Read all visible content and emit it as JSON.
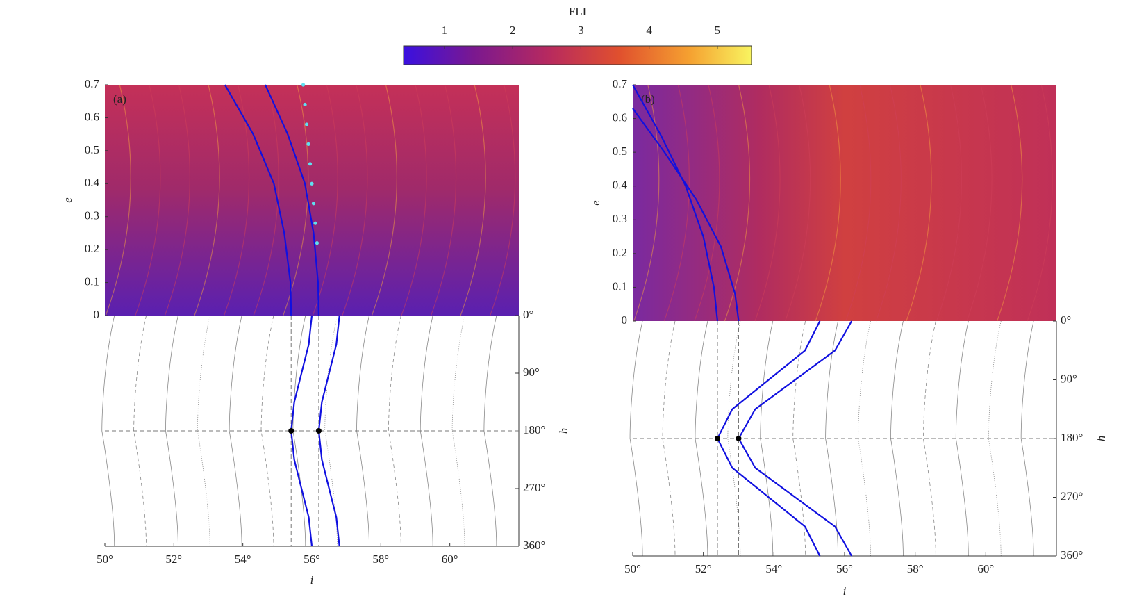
{
  "chart_data": [
    {
      "type": "colorbar",
      "title": "FLI",
      "xlim": [
        0.4,
        5.5
      ],
      "xticks": [
        1,
        2,
        3,
        4,
        5
      ]
    },
    {
      "type": "heatmap",
      "panel_label": "(a)",
      "ylabel": "e",
      "xlim": [
        50,
        62
      ],
      "ylim": [
        0,
        0.7
      ],
      "yticks": [
        0,
        0.1,
        0.2,
        0.3,
        0.4,
        0.5,
        0.6,
        0.7
      ],
      "series": [
        {
          "style": "line",
          "color": "#1010e0",
          "x": [
            53.48,
            54.3,
            54.9,
            55.2,
            55.38,
            55.4
          ],
          "values": [
            0.7,
            0.55,
            0.4,
            0.25,
            0.1,
            0
          ]
        },
        {
          "style": "line",
          "color": "#1010e0",
          "x": [
            54.65,
            55.3,
            55.8,
            56.05,
            56.18,
            56.2
          ],
          "values": [
            0.7,
            0.55,
            0.4,
            0.25,
            0.1,
            0
          ]
        },
        {
          "style": "points",
          "color": "#5fe0f0",
          "x": [
            55.75,
            55.8,
            55.85,
            55.9,
            55.95,
            56.0,
            56.05,
            56.1,
            56.15
          ],
          "values": [
            0.7,
            0.64,
            0.58,
            0.52,
            0.46,
            0.4,
            0.34,
            0.28,
            0.22
          ]
        }
      ]
    },
    {
      "type": "line",
      "xlabel": "i",
      "ylabel": "h",
      "xlim": [
        50,
        62
      ],
      "ylim": [
        0,
        360
      ],
      "y_inverted": true,
      "xticks": [
        {
          "value": 50,
          "label": "50°"
        },
        {
          "value": 52,
          "label": "52°"
        },
        {
          "value": 54,
          "label": "54°"
        },
        {
          "value": 56,
          "label": "56°"
        },
        {
          "value": 58,
          "label": "58°"
        },
        {
          "value": 60,
          "label": "60°"
        }
      ],
      "yticks": [
        {
          "value": 0,
          "label": "0°"
        },
        {
          "value": 90,
          "label": "90°"
        },
        {
          "value": 180,
          "label": "180°"
        },
        {
          "value": 270,
          "label": "270°"
        },
        {
          "value": 360,
          "label": "360°"
        }
      ],
      "series": [
        {
          "style": "line",
          "color": "#1010e0",
          "x": [
            56.0,
            55.91,
            55.7,
            55.49,
            55.4,
            55.49,
            55.7,
            55.91,
            56.0
          ],
          "values": [
            0,
            45,
            90,
            135,
            180,
            225,
            270,
            315,
            360
          ]
        },
        {
          "style": "line",
          "color": "#1010e0",
          "x": [
            56.8,
            56.71,
            56.5,
            56.29,
            56.2,
            56.29,
            56.5,
            56.71,
            56.8
          ],
          "values": [
            0,
            45,
            90,
            135,
            180,
            225,
            270,
            315,
            360
          ]
        },
        {
          "style": "points",
          "color": "#000000",
          "x": [
            55.4,
            56.2
          ],
          "values": [
            180,
            180
          ]
        }
      ]
    },
    {
      "type": "heatmap",
      "panel_label": "(b)",
      "ylabel": "e",
      "xlim": [
        50,
        62
      ],
      "ylim": [
        0,
        0.7
      ],
      "yticks": [
        0,
        0.1,
        0.2,
        0.3,
        0.4,
        0.5,
        0.6,
        0.7
      ],
      "series": [
        {
          "style": "line",
          "color": "#1010e0",
          "x": [
            50,
            50.8,
            51.5,
            52.0,
            52.3,
            52.4
          ],
          "values": [
            0.7,
            0.55,
            0.4,
            0.25,
            0.1,
            0
          ]
        },
        {
          "style": "line",
          "color": "#1010e0",
          "x": [
            50,
            50.9,
            51.8,
            52.5,
            52.9,
            53.0
          ],
          "values": [
            0.63,
            0.5,
            0.36,
            0.22,
            0.08,
            0
          ]
        }
      ]
    },
    {
      "type": "line",
      "xlabel": "i",
      "ylabel": "h",
      "xlim": [
        50,
        62
      ],
      "ylim": [
        0,
        360
      ],
      "y_inverted": true,
      "xticks": [
        {
          "value": 50,
          "label": "50°"
        },
        {
          "value": 52,
          "label": "52°"
        },
        {
          "value": 54,
          "label": "54°"
        },
        {
          "value": 56,
          "label": "56°"
        },
        {
          "value": 58,
          "label": "58°"
        },
        {
          "value": 60,
          "label": "60°"
        }
      ],
      "yticks": [
        {
          "value": 0,
          "label": "0°"
        },
        {
          "value": 90,
          "label": "90°"
        },
        {
          "value": 180,
          "label": "180°"
        },
        {
          "value": 270,
          "label": "270°"
        },
        {
          "value": 360,
          "label": "360°"
        }
      ],
      "series": [
        {
          "style": "line",
          "color": "#1010e0",
          "x": [
            55.3,
            54.88,
            53.85,
            52.82,
            52.4,
            52.82,
            53.85,
            54.88,
            55.3
          ],
          "values": [
            0,
            45,
            90,
            135,
            180,
            225,
            270,
            315,
            360
          ]
        },
        {
          "style": "line",
          "color": "#1010e0",
          "x": [
            56.2,
            55.73,
            54.6,
            53.47,
            53.0,
            53.47,
            54.6,
            55.73,
            56.2
          ],
          "values": [
            0,
            45,
            90,
            135,
            180,
            225,
            270,
            315,
            360
          ]
        },
        {
          "style": "points",
          "color": "#000000",
          "x": [
            52.4,
            53.0
          ],
          "values": [
            180,
            180
          ]
        }
      ]
    }
  ]
}
